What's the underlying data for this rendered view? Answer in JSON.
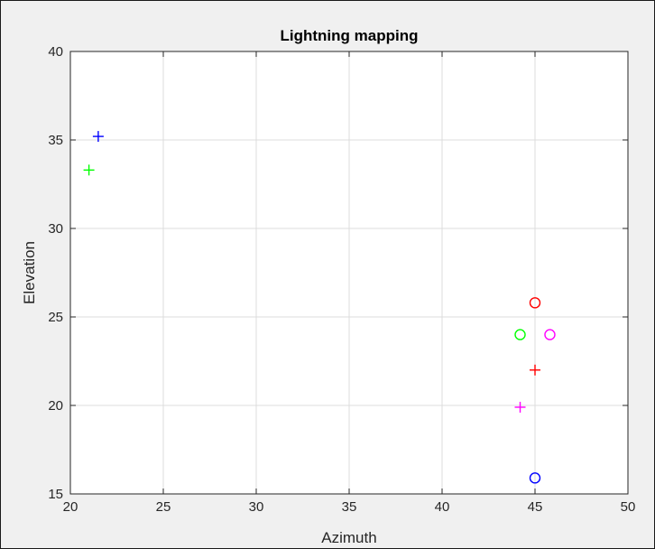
{
  "chart_data": {
    "type": "scatter",
    "title": "Lightning mapping",
    "xlabel": "Azimuth",
    "ylabel": "Elevation",
    "xlim": [
      20,
      50
    ],
    "ylim": [
      15,
      40
    ],
    "xticks": [
      "20",
      "25",
      "30",
      "35",
      "40",
      "45",
      "50"
    ],
    "yticks": [
      "15",
      "20",
      "25",
      "30",
      "35",
      "40"
    ],
    "grid": true,
    "series": [
      {
        "color": "#0000ff",
        "marker": "plus",
        "points": [
          {
            "x": 21.5,
            "y": 35.2
          }
        ]
      },
      {
        "color": "#00ff00",
        "marker": "plus",
        "points": [
          {
            "x": 21.0,
            "y": 33.3
          }
        ]
      },
      {
        "color": "#ff0000",
        "marker": "plus",
        "points": [
          {
            "x": 45.0,
            "y": 22.0
          }
        ]
      },
      {
        "color": "#ff00ff",
        "marker": "plus",
        "points": [
          {
            "x": 44.2,
            "y": 19.9
          }
        ]
      },
      {
        "color": "#ff0000",
        "marker": "circle",
        "points": [
          {
            "x": 45.0,
            "y": 25.8
          }
        ]
      },
      {
        "color": "#00ff00",
        "marker": "circle",
        "points": [
          {
            "x": 44.2,
            "y": 24.0
          }
        ]
      },
      {
        "color": "#ff00ff",
        "marker": "circle",
        "points": [
          {
            "x": 45.8,
            "y": 24.0
          }
        ]
      },
      {
        "color": "#0000ff",
        "marker": "circle",
        "points": [
          {
            "x": 45.0,
            "y": 15.9
          }
        ]
      }
    ]
  }
}
